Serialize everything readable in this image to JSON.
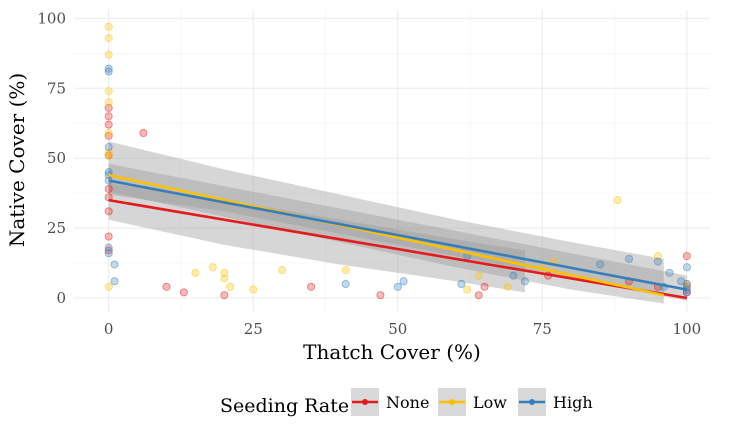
{
  "chart_data": {
    "type": "scatter",
    "title": "",
    "xlabel": "Thatch Cover (%)",
    "ylabel": "Native Cover (%)",
    "xlim": [
      -6,
      104
    ],
    "ylim": [
      -5,
      103
    ],
    "x_ticks": [
      0,
      25,
      50,
      75,
      100
    ],
    "x_tick_labels": [
      "0",
      "25",
      "50",
      "75",
      "100"
    ],
    "y_ticks": [
      0,
      25,
      50,
      75,
      100
    ],
    "y_tick_labels": [
      "0",
      "25",
      "50",
      "75",
      "100"
    ],
    "grid": true,
    "legend": {
      "title": "Seeding Rate",
      "position": "bottom",
      "entries": [
        "None",
        "Low",
        "High"
      ]
    },
    "series": [
      {
        "name": "None",
        "color": "#e41a1c",
        "points": [
          [
            0,
            68
          ],
          [
            0,
            65
          ],
          [
            0,
            62
          ],
          [
            0,
            58
          ],
          [
            0,
            51
          ],
          [
            0,
            31
          ],
          [
            0,
            22
          ],
          [
            0,
            17
          ],
          [
            0,
            39
          ],
          [
            0,
            36
          ],
          [
            6,
            59
          ],
          [
            10,
            4
          ],
          [
            13,
            2
          ],
          [
            20,
            1
          ],
          [
            35,
            4
          ],
          [
            47,
            1
          ],
          [
            64,
            1
          ],
          [
            65,
            4
          ],
          [
            76,
            8
          ],
          [
            90,
            6
          ],
          [
            95,
            4
          ],
          [
            100,
            15
          ],
          [
            100,
            4
          ],
          [
            100,
            2
          ]
        ],
        "fit": {
          "x": [
            0,
            100
          ],
          "y": [
            35,
            0
          ]
        },
        "band": {
          "x": [
            0,
            20,
            40,
            60,
            72,
            72,
            60,
            40,
            20,
            0
          ],
          "y": [
            41,
            35,
            28,
            21,
            17,
            2,
            6,
            12,
            19,
            28
          ]
        }
      },
      {
        "name": "Low",
        "color": "#ffc000",
        "points": [
          [
            0,
            97
          ],
          [
            0,
            93
          ],
          [
            0,
            87
          ],
          [
            0,
            74
          ],
          [
            0,
            70
          ],
          [
            0,
            59
          ],
          [
            0,
            52
          ],
          [
            0,
            51
          ],
          [
            0,
            4
          ],
          [
            15,
            9
          ],
          [
            18,
            11
          ],
          [
            20,
            9
          ],
          [
            20,
            7
          ],
          [
            21,
            4
          ],
          [
            25,
            3
          ],
          [
            30,
            10
          ],
          [
            41,
            10
          ],
          [
            62,
            3
          ],
          [
            64,
            8
          ],
          [
            69,
            4
          ],
          [
            75,
            11
          ],
          [
            77,
            13
          ],
          [
            88,
            35
          ],
          [
            95,
            15
          ],
          [
            100,
            5
          ]
        ],
        "fit": {
          "x": [
            0,
            96
          ],
          "y": [
            44,
            1
          ]
        },
        "band": {
          "x": [
            0,
            20,
            40,
            60,
            80,
            96,
            96,
            80,
            60,
            40,
            20,
            0
          ],
          "y": [
            56,
            46,
            37,
            28,
            20,
            14,
            -2,
            3,
            11,
            20,
            29,
            38
          ]
        }
      },
      {
        "name": "High",
        "color": "#377eb8",
        "points": [
          [
            0,
            82
          ],
          [
            0,
            81
          ],
          [
            0,
            54
          ],
          [
            0,
            45
          ],
          [
            0,
            44
          ],
          [
            0,
            42
          ],
          [
            0,
            18
          ],
          [
            0,
            16
          ],
          [
            1,
            12
          ],
          [
            1,
            6
          ],
          [
            41,
            5
          ],
          [
            50,
            4
          ],
          [
            51,
            6
          ],
          [
            61,
            5
          ],
          [
            62,
            15
          ],
          [
            70,
            8
          ],
          [
            72,
            6
          ],
          [
            85,
            12
          ],
          [
            90,
            14
          ],
          [
            95,
            13
          ],
          [
            96,
            4
          ],
          [
            97,
            9
          ],
          [
            99,
            6
          ],
          [
            100,
            11
          ],
          [
            100,
            5
          ],
          [
            100,
            3
          ],
          [
            100,
            2
          ]
        ],
        "fit": {
          "x": [
            0,
            100
          ],
          "y": [
            42,
            3
          ]
        },
        "band": {
          "x": [
            0,
            20,
            40,
            60,
            80,
            100,
            100,
            80,
            60,
            40,
            20,
            0
          ],
          "y": [
            48,
            40,
            32,
            24,
            16,
            8,
            -1,
            7,
            15,
            23,
            31,
            37
          ]
        }
      }
    ]
  }
}
